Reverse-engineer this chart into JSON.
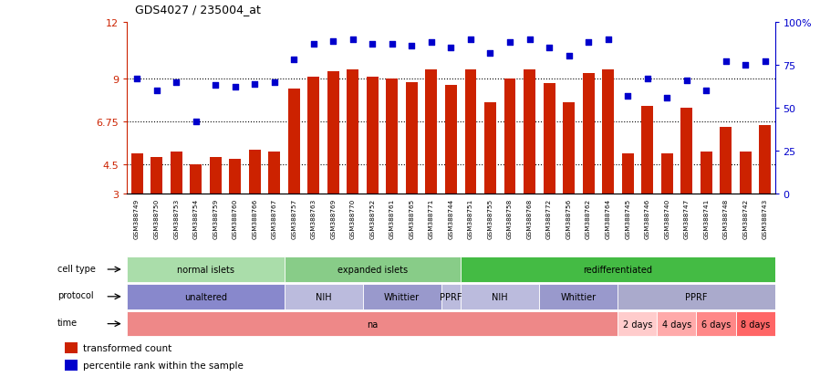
{
  "title": "GDS4027 / 235004_at",
  "samples": [
    "GSM388749",
    "GSM388750",
    "GSM388753",
    "GSM388754",
    "GSM388759",
    "GSM388760",
    "GSM388766",
    "GSM388767",
    "GSM388757",
    "GSM388763",
    "GSM388769",
    "GSM388770",
    "GSM388752",
    "GSM388761",
    "GSM388765",
    "GSM388771",
    "GSM388744",
    "GSM388751",
    "GSM388755",
    "GSM388758",
    "GSM388768",
    "GSM388772",
    "GSM388756",
    "GSM388762",
    "GSM388764",
    "GSM388745",
    "GSM388746",
    "GSM388740",
    "GSM388747",
    "GSM388741",
    "GSM388748",
    "GSM388742",
    "GSM388743"
  ],
  "bar_values": [
    5.1,
    4.9,
    5.2,
    4.5,
    4.9,
    4.8,
    5.3,
    5.2,
    8.5,
    9.1,
    9.4,
    9.5,
    9.1,
    9.0,
    8.85,
    9.5,
    8.7,
    9.5,
    7.8,
    9.0,
    9.5,
    8.8,
    7.8,
    9.3,
    9.5,
    5.1,
    7.6,
    5.1,
    7.5,
    5.2,
    6.5,
    5.2,
    6.6
  ],
  "pct_values": [
    67,
    60,
    65,
    42,
    63,
    62,
    64,
    65,
    78,
    87,
    89,
    90,
    87,
    87,
    86,
    88,
    85,
    90,
    82,
    88,
    90,
    85,
    80,
    88,
    90,
    57,
    67,
    56,
    66,
    60,
    77,
    75,
    77
  ],
  "yticks_left": [
    3,
    4.5,
    6.75,
    9,
    12
  ],
  "yticks_right": [
    0,
    25,
    50,
    75,
    100
  ],
  "ymin": 3,
  "ymax": 12,
  "bar_color": "#cc2200",
  "pct_color": "#0000cc",
  "dotted_lines": [
    4.5,
    6.75,
    9
  ],
  "cell_type_groups": [
    {
      "label": "normal islets",
      "start": 0,
      "end": 8,
      "color": "#aaddaa"
    },
    {
      "label": "expanded islets",
      "start": 8,
      "end": 17,
      "color": "#88cc88"
    },
    {
      "label": "redifferentiated",
      "start": 17,
      "end": 33,
      "color": "#44bb44"
    }
  ],
  "protocol_groups": [
    {
      "label": "unaltered",
      "start": 0,
      "end": 8,
      "color": "#8888cc"
    },
    {
      "label": "NIH",
      "start": 8,
      "end": 12,
      "color": "#bbbbdd"
    },
    {
      "label": "Whittier",
      "start": 12,
      "end": 16,
      "color": "#9999cc"
    },
    {
      "label": "PPRF",
      "start": 16,
      "end": 17,
      "color": "#bbbbdd"
    },
    {
      "label": "NIH",
      "start": 17,
      "end": 21,
      "color": "#bbbbdd"
    },
    {
      "label": "Whittier",
      "start": 21,
      "end": 25,
      "color": "#9999cc"
    },
    {
      "label": "PPRF",
      "start": 25,
      "end": 33,
      "color": "#aaaacc"
    }
  ],
  "time_groups": [
    {
      "label": "na",
      "start": 0,
      "end": 25,
      "color": "#ee8888"
    },
    {
      "label": "2 days",
      "start": 25,
      "end": 27,
      "color": "#ffcccc"
    },
    {
      "label": "4 days",
      "start": 27,
      "end": 29,
      "color": "#ffaaaa"
    },
    {
      "label": "6 days",
      "start": 29,
      "end": 31,
      "color": "#ff8888"
    },
    {
      "label": "8 days",
      "start": 31,
      "end": 33,
      "color": "#ff6666"
    }
  ],
  "legend": [
    {
      "label": "transformed count",
      "color": "#cc2200"
    },
    {
      "label": "percentile rank within the sample",
      "color": "#0000cc"
    }
  ]
}
